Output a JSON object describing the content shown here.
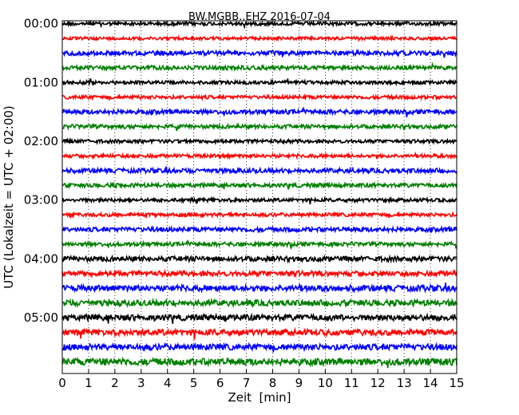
{
  "chart_data": {
    "type": "line",
    "title": "BW.MGBB..EHZ 2016-07-04",
    "xlabel": "Zeit  [min]",
    "ylabel": "UTC (Lokalzeit = UTC + 02:00)",
    "xlim": [
      0,
      15
    ],
    "x_ticks": [
      "0",
      "1",
      "2",
      "3",
      "4",
      "5",
      "6",
      "7",
      "8",
      "9",
      "10",
      "11",
      "12",
      "13",
      "14",
      "15"
    ],
    "y_tick_labels": [
      "00:00",
      "01:00",
      "02:00",
      "03:00",
      "04:00",
      "05:00"
    ],
    "y_tick_hours": [
      0,
      1,
      2,
      3,
      4,
      5
    ],
    "ylim_hours": [
      5.95,
      -0.05
    ],
    "trace_interval_minutes": 15,
    "grid": "vertical-dotted",
    "colors": [
      "#000000",
      "#ff0000",
      "#0000ff",
      "#007f00"
    ],
    "traces": [
      {
        "start": "00:00",
        "color": "#000000",
        "amplitude": 0.35
      },
      {
        "start": "00:15",
        "color": "#ff0000",
        "amplitude": 0.3
      },
      {
        "start": "00:30",
        "color": "#0000ff",
        "amplitude": 0.45
      },
      {
        "start": "00:45",
        "color": "#007f00",
        "amplitude": 0.4
      },
      {
        "start": "01:00",
        "color": "#000000",
        "amplitude": 0.35
      },
      {
        "start": "01:15",
        "color": "#ff0000",
        "amplitude": 0.35
      },
      {
        "start": "01:30",
        "color": "#0000ff",
        "amplitude": 0.45
      },
      {
        "start": "01:45",
        "color": "#007f00",
        "amplitude": 0.4
      },
      {
        "start": "02:00",
        "color": "#000000",
        "amplitude": 0.35
      },
      {
        "start": "02:15",
        "color": "#ff0000",
        "amplitude": 0.35
      },
      {
        "start": "02:30",
        "color": "#0000ff",
        "amplitude": 0.45
      },
      {
        "start": "02:45",
        "color": "#007f00",
        "amplitude": 0.4
      },
      {
        "start": "03:00",
        "color": "#000000",
        "amplitude": 0.35
      },
      {
        "start": "03:15",
        "color": "#ff0000",
        "amplitude": 0.35
      },
      {
        "start": "03:30",
        "color": "#0000ff",
        "amplitude": 0.45
      },
      {
        "start": "03:45",
        "color": "#007f00",
        "amplitude": 0.4
      },
      {
        "start": "04:00",
        "color": "#000000",
        "amplitude": 0.5
      },
      {
        "start": "04:15",
        "color": "#ff0000",
        "amplitude": 0.5
      },
      {
        "start": "04:30",
        "color": "#0000ff",
        "amplitude": 0.6
      },
      {
        "start": "04:45",
        "color": "#007f00",
        "amplitude": 0.6
      },
      {
        "start": "05:00",
        "color": "#000000",
        "amplitude": 0.6
      },
      {
        "start": "05:15",
        "color": "#ff0000",
        "amplitude": 0.6
      },
      {
        "start": "05:30",
        "color": "#0000ff",
        "amplitude": 0.6
      },
      {
        "start": "05:45",
        "color": "#007f00",
        "amplitude": 0.7
      }
    ]
  }
}
